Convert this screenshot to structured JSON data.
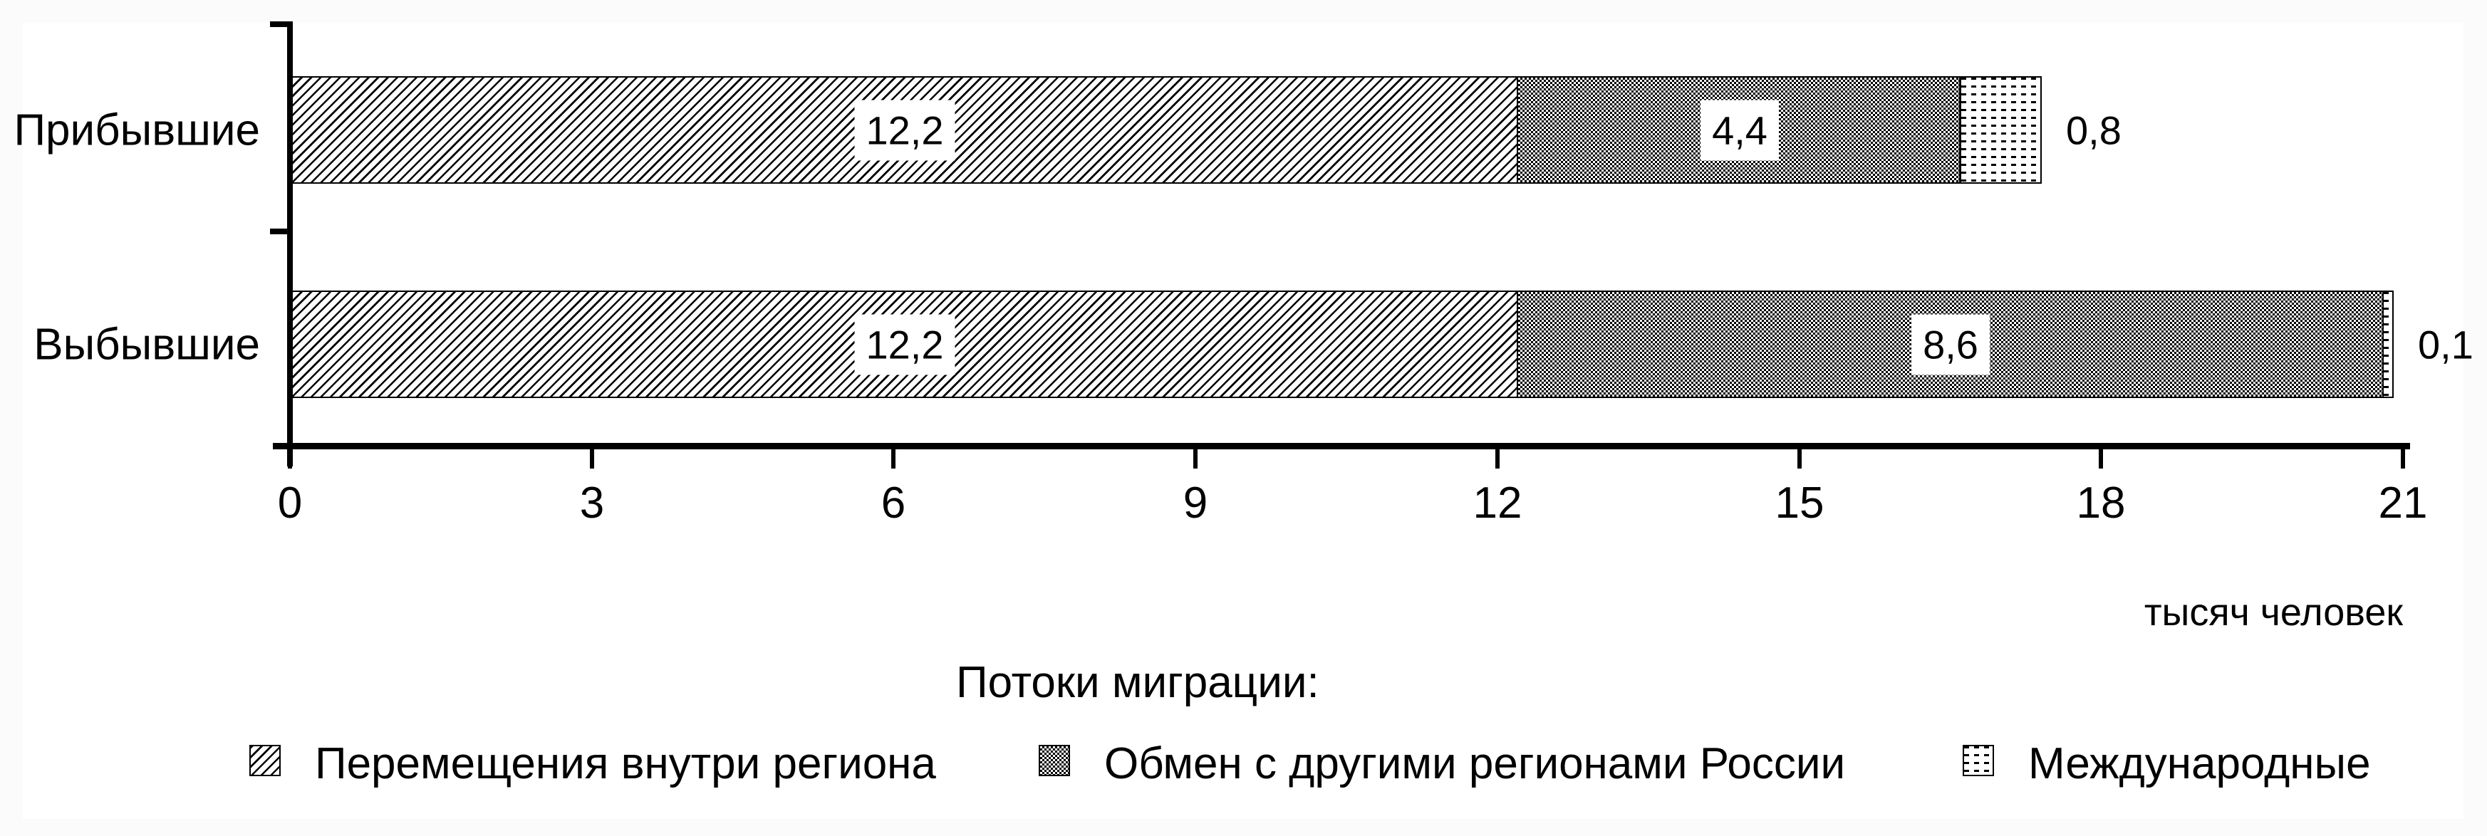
{
  "chart_data": {
    "type": "bar",
    "orientation": "horizontal-stacked",
    "title": "",
    "categories": [
      "Прибывшие",
      "Выбывшие"
    ],
    "series": [
      {
        "name": "Перемещения внутри региона",
        "pattern": "diagonal-hatch",
        "values": [
          12.2,
          12.2
        ],
        "labels": [
          "12,2",
          "12,2"
        ],
        "label_outside": false
      },
      {
        "name": "Обмен с другими регионами России",
        "pattern": "checker",
        "values": [
          4.4,
          8.6
        ],
        "labels": [
          "4,4",
          "8,6"
        ],
        "label_outside": false
      },
      {
        "name": "Международные",
        "pattern": "dot-rows",
        "values": [
          0.8,
          0.1
        ],
        "labels": [
          "0,8",
          "0,1"
        ],
        "label_outside": true
      }
    ],
    "category_totals": [
      17.4,
      20.9
    ],
    "xlim": [
      0,
      21
    ],
    "x_ticks": [
      0,
      3,
      6,
      9,
      12,
      15,
      18,
      21
    ],
    "x_tick_labels": [
      "0",
      "3",
      "6",
      "9",
      "12",
      "15",
      "18",
      "21"
    ],
    "xlabel": "тысяч человек",
    "legend_title": "Потоки миграции:",
    "legend_position": "bottom",
    "grid": false,
    "colors": {
      "foreground": "#000000",
      "background": "#ffffff",
      "frame": "#fbfbfb"
    }
  }
}
